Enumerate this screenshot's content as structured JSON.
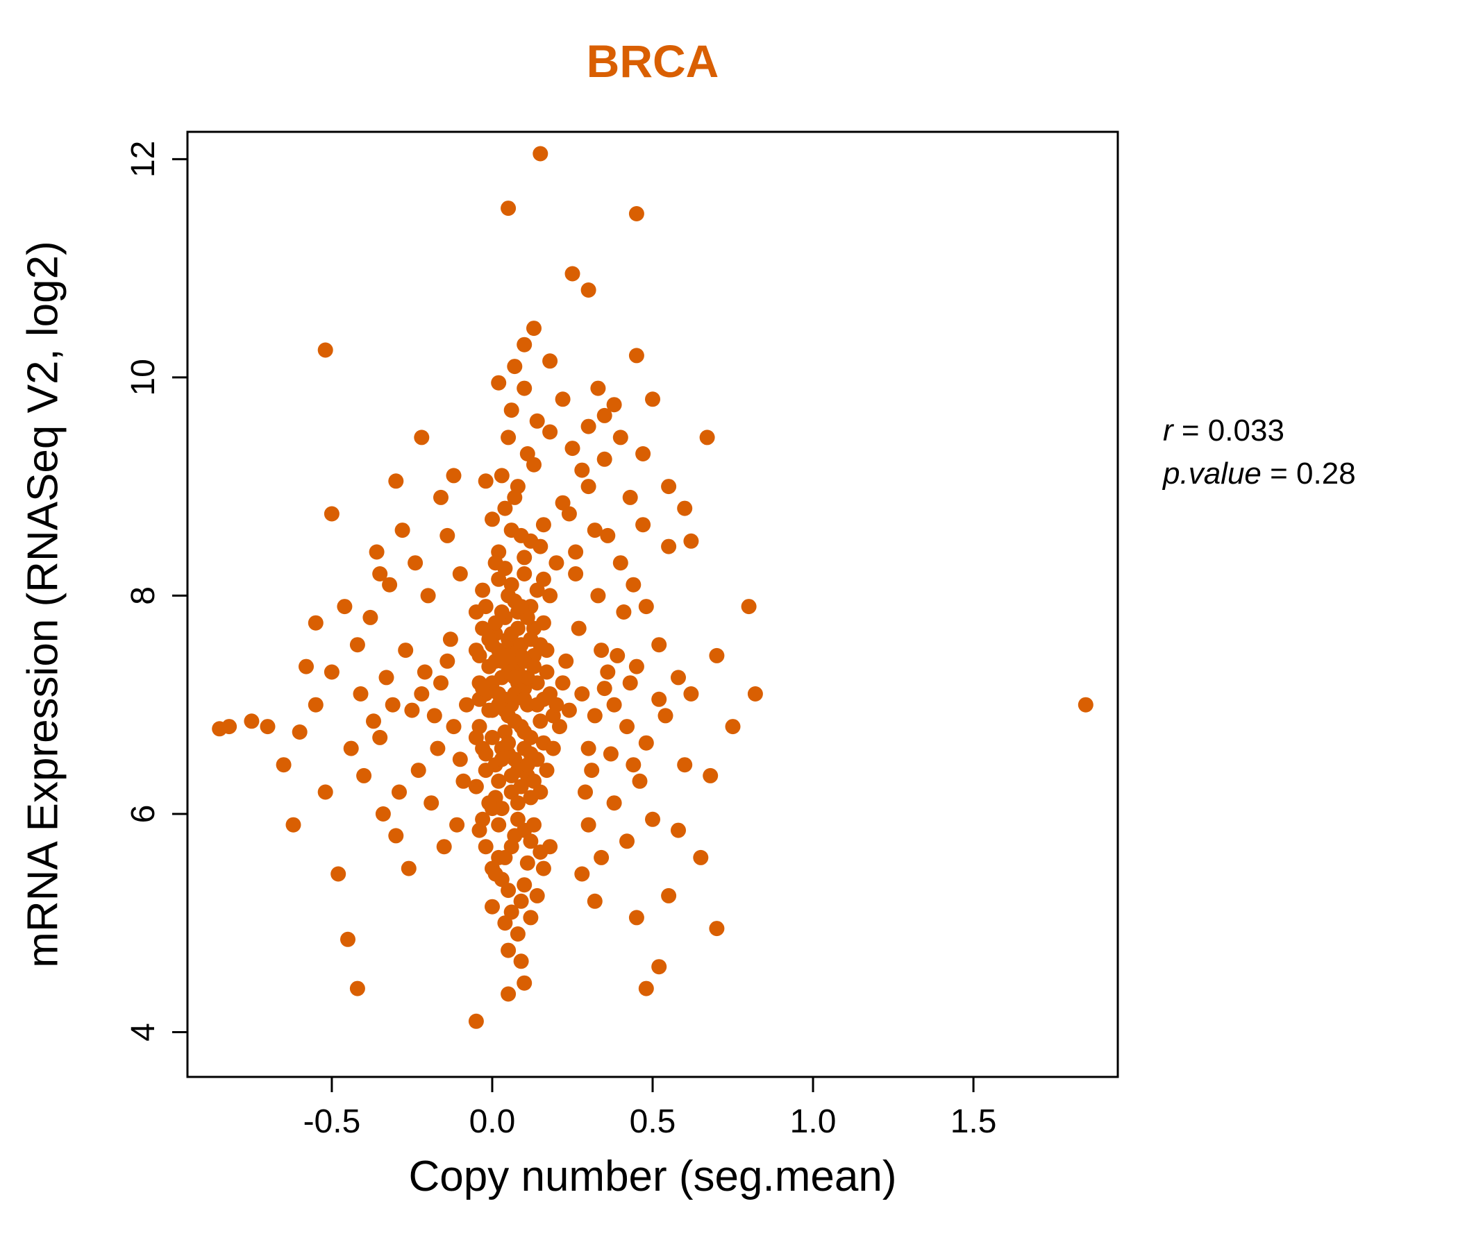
{
  "title": "BRCA",
  "accent_color": "#D95F02",
  "annotation": {
    "r_label": "r",
    "r_eq": " = 0.033",
    "p_label": "p.value",
    "p_eq": " = 0.28"
  },
  "chart_data": {
    "type": "scatter",
    "title": "BRCA",
    "xlabel": "Copy number (seg.mean)",
    "ylabel": "mRNA Expression (RNASeq V2, log2)",
    "xlim": [
      -0.95,
      1.95
    ],
    "ylim": [
      3.59,
      12.25
    ],
    "grid": false,
    "legend": "none",
    "point_color": "#D95F02",
    "point_radius": 11,
    "stats": {
      "r": 0.033,
      "p_value": 0.28
    },
    "xticks": {
      "values": [
        -0.5,
        0.0,
        0.5,
        1.0,
        1.5
      ],
      "labels": [
        "-0.5",
        "0.0",
        "0.5",
        "1.0",
        "1.5"
      ]
    },
    "yticks": {
      "values": [
        4,
        6,
        8,
        10,
        12
      ],
      "labels": [
        "4",
        "6",
        "8",
        "10",
        "12"
      ]
    },
    "points": [
      [
        0.02,
        7.1
      ],
      [
        0.05,
        6.9
      ],
      [
        0.08,
        7.3
      ],
      [
        0.11,
        7.0
      ],
      [
        0.03,
        6.6
      ],
      [
        0.14,
        7.2
      ],
      [
        0.06,
        7.5
      ],
      [
        0.09,
        6.8
      ],
      [
        0.01,
        7.4
      ],
      [
        0.12,
        6.7
      ],
      [
        0.04,
        7.8
      ],
      [
        0.07,
        6.5
      ],
      [
        0.1,
        7.15
      ],
      [
        0.13,
        7.45
      ],
      [
        0.0,
        6.95
      ],
      [
        0.16,
        7.05
      ],
      [
        0.05,
        7.6
      ],
      [
        0.08,
        6.4
      ],
      [
        0.02,
        6.3
      ],
      [
        0.15,
        6.85
      ],
      [
        0.03,
        7.25
      ],
      [
        0.06,
        7.0
      ],
      [
        0.09,
        7.55
      ],
      [
        0.12,
        7.9
      ],
      [
        0.18,
        7.1
      ],
      [
        0.04,
        6.75
      ],
      [
        0.07,
        7.35
      ],
      [
        0.1,
        6.6
      ],
      [
        0.14,
        6.5
      ],
      [
        0.01,
        7.65
      ],
      [
        0.05,
        8.0
      ],
      [
        0.08,
        7.85
      ],
      [
        0.11,
        6.35
      ],
      [
        0.02,
        7.5
      ],
      [
        0.17,
        7.3
      ],
      [
        0.06,
        6.2
      ],
      [
        0.09,
        7.1
      ],
      [
        0.13,
        7.7
      ],
      [
        0.0,
        7.2
      ],
      [
        0.16,
        6.65
      ],
      [
        0.03,
        6.05
      ],
      [
        0.07,
        7.95
      ],
      [
        0.1,
        7.4
      ],
      [
        0.04,
        7.05
      ],
      [
        0.12,
        6.15
      ],
      [
        0.19,
        6.9
      ],
      [
        0.05,
        6.55
      ],
      [
        0.08,
        7.2
      ],
      [
        0.15,
        7.55
      ],
      [
        0.01,
        6.45
      ],
      [
        0.06,
        8.1
      ],
      [
        0.09,
        6.25
      ],
      [
        0.11,
        7.25
      ],
      [
        0.03,
        7.85
      ],
      [
        0.14,
        8.05
      ],
      [
        0.0,
        6.7
      ],
      [
        0.17,
        6.4
      ],
      [
        0.07,
        6.85
      ],
      [
        0.1,
        8.2
      ],
      [
        0.02,
        8.15
      ],
      [
        0.2,
        7.0
      ],
      [
        0.05,
        7.3
      ],
      [
        0.08,
        6.1
      ],
      [
        0.12,
        7.6
      ],
      [
        0.04,
        6.95
      ],
      [
        0.16,
        7.75
      ],
      [
        0.09,
        7.45
      ],
      [
        0.01,
        6.15
      ],
      [
        0.13,
        6.3
      ],
      [
        0.06,
        7.65
      ],
      [
        0.22,
        7.2
      ],
      [
        0.1,
        6.75
      ],
      [
        0.03,
        7.4
      ],
      [
        0.18,
        8.0
      ],
      [
        0.07,
        7.1
      ],
      [
        0.11,
        7.8
      ],
      [
        0.0,
        7.55
      ],
      [
        0.15,
        6.2
      ],
      [
        0.05,
        6.65
      ],
      [
        0.09,
        7.9
      ],
      [
        0.21,
        6.8
      ],
      [
        0.02,
        7.0
      ],
      [
        0.13,
        7.35
      ],
      [
        0.06,
        6.35
      ],
      [
        0.17,
        7.5
      ],
      [
        0.04,
        8.25
      ],
      [
        0.1,
        7.05
      ],
      [
        0.08,
        7.7
      ],
      [
        0.12,
        6.55
      ],
      [
        0.23,
        7.4
      ],
      [
        0.01,
        7.75
      ],
      [
        0.14,
        7.0
      ],
      [
        0.05,
        7.45
      ],
      [
        0.19,
        6.6
      ],
      [
        0.03,
        6.5
      ],
      [
        0.07,
        7.25
      ],
      [
        0.16,
        8.15
      ],
      [
        0.0,
        6.05
      ],
      [
        0.11,
        6.45
      ],
      [
        0.24,
        6.95
      ],
      [
        -0.02,
        7.1
      ],
      [
        -0.04,
        6.8
      ],
      [
        -0.01,
        7.35
      ],
      [
        -0.03,
        6.6
      ],
      [
        -0.05,
        7.5
      ],
      [
        -0.02,
        6.4
      ],
      [
        -0.04,
        7.2
      ],
      [
        -0.01,
        6.95
      ],
      [
        -0.03,
        7.7
      ],
      [
        -0.05,
        6.25
      ],
      [
        -0.02,
        7.9
      ],
      [
        -0.04,
        7.45
      ],
      [
        -0.01,
        6.1
      ],
      [
        -0.03,
        8.05
      ],
      [
        -0.05,
        6.7
      ],
      [
        -0.02,
        6.55
      ],
      [
        -0.04,
        7.05
      ],
      [
        -0.01,
        7.6
      ],
      [
        -0.03,
        7.15
      ],
      [
        -0.05,
        7.85
      ],
      [
        0.02,
        5.9
      ],
      [
        0.06,
        5.7
      ],
      [
        0.1,
        5.85
      ],
      [
        0.04,
        5.6
      ],
      [
        0.08,
        5.95
      ],
      [
        0.12,
        5.75
      ],
      [
        0.0,
        5.5
      ],
      [
        0.15,
        5.65
      ],
      [
        0.03,
        5.4
      ],
      [
        0.07,
        5.8
      ],
      [
        0.11,
        5.55
      ],
      [
        0.05,
        5.3
      ],
      [
        0.09,
        5.2
      ],
      [
        0.13,
        5.9
      ],
      [
        0.01,
        5.45
      ],
      [
        0.16,
        5.5
      ],
      [
        -0.02,
        5.7
      ],
      [
        -0.04,
        5.85
      ],
      [
        0.06,
        5.1
      ],
      [
        0.1,
        5.35
      ],
      [
        0.04,
        5.0
      ],
      [
        0.08,
        4.9
      ],
      [
        0.02,
        5.6
      ],
      [
        0.14,
        5.25
      ],
      [
        -0.03,
        5.95
      ],
      [
        0.18,
        5.7
      ],
      [
        0.05,
        4.75
      ],
      [
        0.12,
        5.05
      ],
      [
        0.0,
        5.15
      ],
      [
        0.09,
        4.65
      ],
      [
        0.02,
        8.4
      ],
      [
        0.06,
        8.6
      ],
      [
        0.1,
        8.35
      ],
      [
        0.04,
        8.8
      ],
      [
        0.08,
        9.0
      ],
      [
        0.12,
        8.5
      ],
      [
        0.0,
        8.7
      ],
      [
        0.15,
        8.45
      ],
      [
        0.03,
        9.1
      ],
      [
        0.07,
        8.9
      ],
      [
        0.11,
        9.3
      ],
      [
        0.05,
        9.45
      ],
      [
        0.09,
        8.55
      ],
      [
        0.13,
        9.2
      ],
      [
        0.01,
        8.3
      ],
      [
        0.16,
        8.65
      ],
      [
        -0.02,
        9.05
      ],
      [
        0.18,
        9.5
      ],
      [
        0.06,
        9.7
      ],
      [
        0.1,
        9.9
      ],
      [
        0.22,
        8.85
      ],
      [
        0.14,
        9.6
      ],
      [
        0.25,
        9.35
      ],
      [
        0.2,
        8.3
      ],
      [
        0.28,
        9.15
      ],
      [
        0.24,
        8.75
      ],
      [
        0.3,
        9.0
      ],
      [
        0.26,
        8.4
      ],
      [
        0.32,
        8.6
      ],
      [
        0.35,
        9.25
      ],
      [
        0.28,
        7.1
      ],
      [
        0.32,
        6.9
      ],
      [
        0.36,
        7.3
      ],
      [
        0.3,
        6.6
      ],
      [
        0.34,
        7.5
      ],
      [
        0.38,
        7.0
      ],
      [
        0.42,
        6.8
      ],
      [
        0.27,
        7.7
      ],
      [
        0.31,
        6.4
      ],
      [
        0.35,
        7.15
      ],
      [
        0.39,
        7.45
      ],
      [
        0.43,
        7.2
      ],
      [
        0.29,
        6.2
      ],
      [
        0.33,
        8.0
      ],
      [
        0.37,
        6.55
      ],
      [
        0.41,
        7.85
      ],
      [
        0.45,
        7.35
      ],
      [
        0.26,
        8.2
      ],
      [
        0.48,
        6.65
      ],
      [
        0.52,
        7.05
      ],
      [
        0.3,
        5.9
      ],
      [
        0.34,
        5.6
      ],
      [
        0.38,
        6.1
      ],
      [
        0.42,
        5.75
      ],
      [
        0.46,
        6.3
      ],
      [
        0.5,
        5.95
      ],
      [
        0.28,
        5.45
      ],
      [
        0.32,
        5.2
      ],
      [
        0.44,
        6.45
      ],
      [
        0.54,
        6.9
      ],
      [
        0.4,
        8.3
      ],
      [
        0.36,
        8.55
      ],
      [
        0.44,
        8.1
      ],
      [
        0.48,
        7.9
      ],
      [
        0.52,
        7.55
      ],
      [
        0.47,
        9.3
      ],
      [
        0.55,
        8.45
      ],
      [
        0.3,
        9.55
      ],
      [
        0.38,
        9.75
      ],
      [
        0.33,
        9.9
      ],
      [
        -0.08,
        7.0
      ],
      [
        -0.12,
        6.8
      ],
      [
        -0.16,
        7.2
      ],
      [
        -0.1,
        6.5
      ],
      [
        -0.14,
        7.4
      ],
      [
        -0.18,
        6.9
      ],
      [
        -0.22,
        7.1
      ],
      [
        -0.09,
        6.3
      ],
      [
        -0.13,
        7.6
      ],
      [
        -0.17,
        6.6
      ],
      [
        -0.21,
        7.3
      ],
      [
        -0.25,
        6.95
      ],
      [
        -0.11,
        5.9
      ],
      [
        -0.15,
        5.7
      ],
      [
        -0.19,
        6.1
      ],
      [
        -0.23,
        6.4
      ],
      [
        -0.27,
        7.5
      ],
      [
        -0.31,
        7.0
      ],
      [
        -0.35,
        6.7
      ],
      [
        -0.29,
        6.2
      ],
      [
        -0.33,
        7.25
      ],
      [
        -0.37,
        6.85
      ],
      [
        -0.41,
        7.1
      ],
      [
        -0.26,
        5.5
      ],
      [
        -0.3,
        5.8
      ],
      [
        -0.34,
        6.0
      ],
      [
        -0.2,
        8.0
      ],
      [
        -0.24,
        8.3
      ],
      [
        -0.28,
        8.6
      ],
      [
        -0.16,
        8.9
      ],
      [
        -0.12,
        9.1
      ],
      [
        -0.32,
        8.1
      ],
      [
        -0.38,
        7.8
      ],
      [
        -0.42,
        7.55
      ],
      [
        -0.36,
        8.4
      ],
      [
        -0.22,
        9.45
      ],
      [
        -0.4,
        6.35
      ],
      [
        -0.44,
        6.6
      ],
      [
        -0.1,
        8.2
      ],
      [
        -0.14,
        8.55
      ],
      [
        -0.5,
        7.3
      ],
      [
        -0.55,
        7.0
      ],
      [
        -0.6,
        6.75
      ],
      [
        -0.65,
        6.45
      ],
      [
        -0.7,
        6.8
      ],
      [
        -0.75,
        6.85
      ],
      [
        -0.82,
        6.8
      ],
      [
        -0.85,
        6.78
      ],
      [
        -0.62,
        5.9
      ],
      [
        -0.52,
        6.2
      ],
      [
        -0.45,
        4.85
      ],
      [
        -0.42,
        4.4
      ],
      [
        -0.48,
        5.45
      ],
      [
        -0.55,
        7.75
      ],
      [
        -0.5,
        8.75
      ],
      [
        -0.52,
        10.25
      ],
      [
        -0.3,
        9.05
      ],
      [
        -0.35,
        8.2
      ],
      [
        -0.46,
        7.9
      ],
      [
        -0.58,
        7.35
      ],
      [
        0.58,
        7.25
      ],
      [
        0.62,
        8.5
      ],
      [
        0.6,
        6.45
      ],
      [
        0.65,
        5.6
      ],
      [
        0.68,
        6.35
      ],
      [
        0.7,
        7.45
      ],
      [
        0.75,
        6.8
      ],
      [
        0.8,
        7.9
      ],
      [
        0.82,
        7.1
      ],
      [
        0.7,
        4.95
      ],
      [
        0.67,
        9.45
      ],
      [
        0.62,
        7.1
      ],
      [
        0.58,
        5.85
      ],
      [
        0.55,
        5.25
      ],
      [
        0.48,
        4.4
      ],
      [
        0.52,
        4.6
      ],
      [
        0.45,
        5.05
      ],
      [
        0.05,
        4.35
      ],
      [
        -0.05,
        4.1
      ],
      [
        0.1,
        4.45
      ],
      [
        0.15,
        12.05
      ],
      [
        0.05,
        11.55
      ],
      [
        0.45,
        11.5
      ],
      [
        0.25,
        10.95
      ],
      [
        0.3,
        10.8
      ],
      [
        0.13,
        10.45
      ],
      [
        0.45,
        10.2
      ],
      [
        0.1,
        10.3
      ],
      [
        0.07,
        10.1
      ],
      [
        0.18,
        10.15
      ],
      [
        0.02,
        9.95
      ],
      [
        0.22,
        9.8
      ],
      [
        0.35,
        9.65
      ],
      [
        0.4,
        9.45
      ],
      [
        0.5,
        9.8
      ],
      [
        0.55,
        9.0
      ],
      [
        0.6,
        8.8
      ],
      [
        0.43,
        8.9
      ],
      [
        0.47,
        8.65
      ],
      [
        1.85,
        7.0
      ]
    ]
  }
}
